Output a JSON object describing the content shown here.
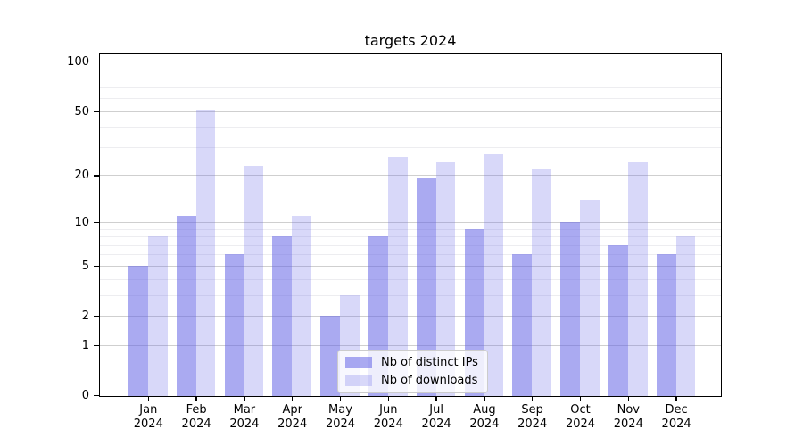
{
  "title": "targets 2024",
  "chart_data": {
    "type": "bar",
    "title": "targets 2024",
    "categories": [
      "Jan",
      "Feb",
      "Mar",
      "Apr",
      "May",
      "Jun",
      "Jul",
      "Aug",
      "Sep",
      "Oct",
      "Nov",
      "Dec"
    ],
    "x_tick_year_label": "2024",
    "series": [
      {
        "name": "Nb of distinct IPs",
        "values": [
          5,
          11,
          6,
          8,
          2,
          8,
          19,
          9,
          6,
          10,
          7,
          6
        ],
        "color": "rgba(100,100,230,0.55)"
      },
      {
        "name": "Nb of downloads",
        "values": [
          8,
          51,
          23,
          11,
          3,
          26,
          24,
          27,
          22,
          14,
          24,
          8
        ],
        "color": "rgba(100,100,230,0.25)"
      }
    ],
    "xlabel": "",
    "ylabel": "",
    "y_axis": {
      "scale": "symlog",
      "major_ticks": [
        0,
        1,
        2,
        5,
        10,
        20,
        50,
        100
      ],
      "major_tick_labels": [
        "0",
        "1",
        "2",
        "5",
        "10",
        "20",
        "50",
        "100"
      ],
      "minor_ticks": [
        3,
        4,
        6,
        7,
        8,
        9,
        30,
        40,
        60,
        70,
        80,
        90
      ],
      "ylim": [
        0,
        113
      ],
      "grid": "on"
    },
    "legend": {
      "position": "bottom-center",
      "entries": [
        "Nb of distinct IPs",
        "Nb of downloads"
      ]
    },
    "colors": {
      "bar_dark": "rgba(100,100,230,0.55)",
      "bar_light": "rgba(100,100,230,0.25)",
      "grid_major": "#cfcfcf",
      "grid_minor": "#ededf0",
      "axis_frame": "#000000",
      "background": "#ffffff"
    }
  }
}
